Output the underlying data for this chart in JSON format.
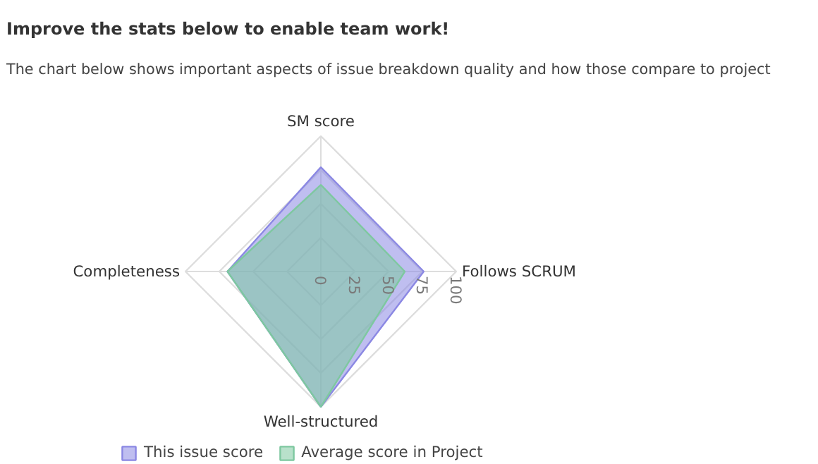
{
  "chart_data": {
    "type": "radar",
    "title": "Improve the stats below to enable team work!",
    "subtitle": "The chart below shows important aspects of issue breakdown quality and how those compare to project",
    "categories": [
      "SM score",
      "Follows SCRUM",
      "Well-structured",
      "Completeness"
    ],
    "series": [
      {
        "name": "This issue score",
        "color": "#8b88e3",
        "values": [
          77,
          76,
          100,
          69
        ]
      },
      {
        "name": "Average score in Project",
        "color": "#7ec8a0",
        "values": [
          64,
          62,
          100,
          69
        ]
      }
    ],
    "ylim": [
      0,
      100
    ],
    "yticks": [
      0,
      25,
      50,
      75,
      100
    ],
    "grid": true,
    "legend": "bottom"
  }
}
